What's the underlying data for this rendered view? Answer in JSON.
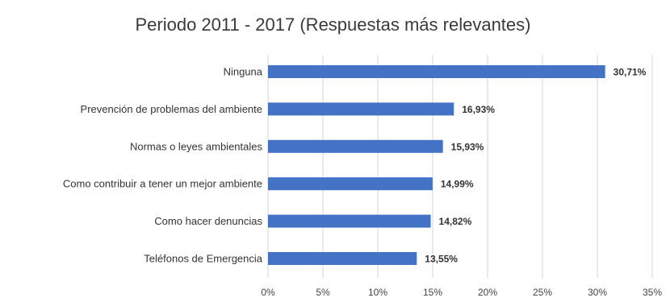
{
  "chart_data": {
    "type": "bar",
    "orientation": "horizontal",
    "title": "Periodo 2011 - 2017 (Respuestas más relevantes)",
    "categories": [
      "Ninguna",
      "Prevención de problemas del ambiente",
      "Normas o leyes ambientales",
      "Como contribuir a tener un mejor ambiente",
      "Como hacer denuncias",
      "Teléfonos de Emergencia"
    ],
    "values": [
      30.71,
      16.93,
      15.93,
      14.99,
      14.82,
      13.55
    ],
    "value_labels": [
      "30,71%",
      "16,93%",
      "15,93%",
      "14,99%",
      "14,82%",
      "13,55%"
    ],
    "xlim": [
      0,
      35
    ],
    "xticks": [
      0,
      5,
      10,
      15,
      20,
      25,
      30,
      35
    ],
    "xtick_labels": [
      "0%",
      "5%",
      "10%",
      "15%",
      "20%",
      "25%",
      "30%",
      "35%"
    ],
    "xlabel": "",
    "ylabel": "",
    "grid": true,
    "legend": "none",
    "bar_color": "#4472c4"
  }
}
